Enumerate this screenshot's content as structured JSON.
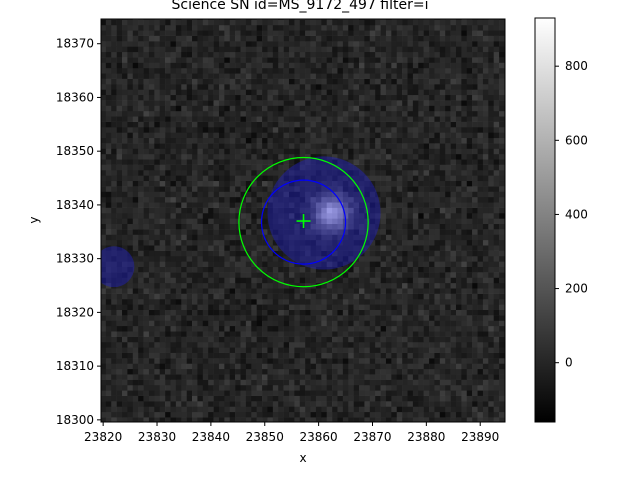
{
  "chart_data": {
    "type": "heatmap",
    "title": "Science SN id=MS_9172_497 filter=i",
    "xlabel": "x",
    "ylabel": "y",
    "xlim": [
      23819.6,
      23894.6
    ],
    "ylim": [
      18299.6,
      18374.6
    ],
    "x_ticks": [
      23820,
      23830,
      23840,
      23850,
      23860,
      23870,
      23880,
      23890
    ],
    "y_ticks": [
      18300,
      18310,
      18320,
      18330,
      18340,
      18350,
      18360,
      18370
    ],
    "colormap": "gray",
    "color_range": [
      -160,
      930
    ],
    "colorbar_ticks": [
      0,
      200,
      400,
      600,
      800
    ],
    "background_level": 0,
    "noise_sigma": 45,
    "source": {
      "x": 23862.5,
      "y": 18338.5,
      "peak": 880,
      "sigma": 2.2
    },
    "mask_regions": [
      {
        "cx": 23861.0,
        "cy": 18338.5,
        "r": 10.5,
        "color": "#2020c0"
      },
      {
        "cx": 23822.0,
        "cy": 18328.5,
        "r": 3.8,
        "color": "#2020c0"
      }
    ],
    "markers": [
      {
        "type": "circle",
        "cx": 23857.2,
        "cy": 18336.8,
        "r": 7.8,
        "color": "#0000ff"
      },
      {
        "type": "circle",
        "cx": 23857.2,
        "cy": 18336.8,
        "r": 12.0,
        "color": "#00ff00"
      },
      {
        "type": "cross",
        "cx": 23857.2,
        "cy": 18337.0,
        "color": "#00ff00"
      }
    ]
  }
}
